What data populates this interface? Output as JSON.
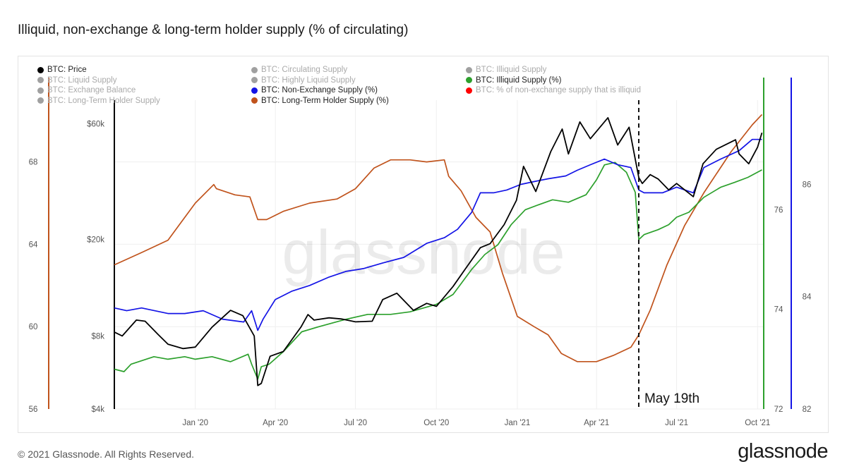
{
  "page": {
    "title": "Illiquid, non-exchange & long-term holder supply (% of circulating)",
    "footer_copyright": "© 2021 Glassnode. All Rights Reserved.",
    "footer_brand": "glassnode",
    "watermark": "glassnode"
  },
  "legend": [
    {
      "label": "BTC: Price",
      "color": "#000000",
      "active": true
    },
    {
      "label": "BTC: Circulating Supply",
      "color": "#a0a0a0",
      "active": false
    },
    {
      "label": "BTC: Illiquid Supply",
      "color": "#a0a0a0",
      "active": false
    },
    {
      "label": "BTC: Liquid Supply",
      "color": "#a0a0a0",
      "active": false
    },
    {
      "label": "BTC: Highly Liquid Supply",
      "color": "#a0a0a0",
      "active": false
    },
    {
      "label": "BTC: Illiquid Supply (%)",
      "color": "#2ca02c",
      "active": true
    },
    {
      "label": "BTC: Exchange Balance",
      "color": "#a0a0a0",
      "active": false
    },
    {
      "label": "BTC: Non-Exchange Supply (%)",
      "color": "#1414e6",
      "active": true
    },
    {
      "label": "BTC: % of non-exchange supply that is illiquid",
      "color": "#ff0000",
      "active": false
    },
    {
      "label": "BTC: Long-Term Holder Supply",
      "color": "#a0a0a0",
      "active": false
    },
    {
      "label": "BTC: Long-Term Holder Supply (%)",
      "color": "#c0531c",
      "active": true
    }
  ],
  "annotation": {
    "label": "May 19th",
    "date": "2021-05-19"
  },
  "chart_data": {
    "type": "line",
    "x_axis": {
      "type": "date",
      "range": [
        "2019-10-01",
        "2021-10-08"
      ],
      "ticks": [
        "Jan '20",
        "Apr '20",
        "Jul '20",
        "Oct '20",
        "Jan '21",
        "Apr '21",
        "Jul '21",
        "Oct '21"
      ],
      "tick_dates": [
        "2020-01-01",
        "2020-04-01",
        "2020-07-01",
        "2020-10-01",
        "2021-01-01",
        "2021-04-01",
        "2021-07-01",
        "2021-10-01"
      ]
    },
    "axes": {
      "price": {
        "scale": "log",
        "range": [
          4000,
          75000
        ],
        "ticks": [
          "$4k",
          "$8k",
          "$20k",
          "$60k"
        ],
        "tick_values": [
          4000,
          8000,
          20000,
          60000
        ],
        "line_color": "#000000"
      },
      "lth_pct": {
        "range": [
          56,
          71
        ],
        "ticks": [
          "56",
          "60",
          "64",
          "68"
        ],
        "tick_values": [
          56,
          60,
          64,
          68
        ],
        "line_color": "#c0531c"
      },
      "illiquid_pct": {
        "range": [
          72,
          78.2
        ],
        "ticks": [
          "72",
          "74",
          "76"
        ],
        "tick_values": [
          72,
          74,
          76
        ],
        "line_color": "#2ca02c"
      },
      "nonex_pct": {
        "range": [
          82,
          87.5
        ],
        "ticks": [
          "82",
          "84",
          "86"
        ],
        "tick_values": [
          82,
          84,
          86
        ],
        "line_color": "#1414e6"
      }
    },
    "grid": true,
    "series": [
      {
        "name": "BTC: Price",
        "axis": "price",
        "color": "#000000",
        "points": [
          [
            "2019-10-01",
            8300
          ],
          [
            "2019-10-10",
            8000
          ],
          [
            "2019-10-26",
            9300
          ],
          [
            "2019-11-05",
            9200
          ],
          [
            "2019-11-20",
            8100
          ],
          [
            "2019-12-01",
            7400
          ],
          [
            "2019-12-18",
            7100
          ],
          [
            "2020-01-01",
            7200
          ],
          [
            "2020-01-20",
            8700
          ],
          [
            "2020-02-10",
            10200
          ],
          [
            "2020-02-24",
            9700
          ],
          [
            "2020-03-08",
            8000
          ],
          [
            "2020-03-12",
            5000
          ],
          [
            "2020-03-16",
            5100
          ],
          [
            "2020-03-26",
            6600
          ],
          [
            "2020-04-10",
            6900
          ],
          [
            "2020-04-30",
            8700
          ],
          [
            "2020-05-08",
            9800
          ],
          [
            "2020-05-15",
            9300
          ],
          [
            "2020-06-01",
            9500
          ],
          [
            "2020-06-15",
            9400
          ],
          [
            "2020-07-01",
            9150
          ],
          [
            "2020-07-20",
            9200
          ],
          [
            "2020-08-01",
            11300
          ],
          [
            "2020-08-17",
            12000
          ],
          [
            "2020-09-05",
            10200
          ],
          [
            "2020-09-20",
            10900
          ],
          [
            "2020-10-01",
            10600
          ],
          [
            "2020-10-20",
            12800
          ],
          [
            "2020-11-05",
            15500
          ],
          [
            "2020-11-20",
            18500
          ],
          [
            "2020-12-01",
            19200
          ],
          [
            "2020-12-17",
            23000
          ],
          [
            "2020-12-31",
            29000
          ],
          [
            "2021-01-08",
            40000
          ],
          [
            "2021-01-22",
            31500
          ],
          [
            "2021-02-08",
            46000
          ],
          [
            "2021-02-21",
            57000
          ],
          [
            "2021-02-28",
            45000
          ],
          [
            "2021-03-13",
            61000
          ],
          [
            "2021-03-25",
            52000
          ],
          [
            "2021-04-14",
            63500
          ],
          [
            "2021-04-25",
            49000
          ],
          [
            "2021-05-08",
            58000
          ],
          [
            "2021-05-19",
            36000
          ],
          [
            "2021-05-23",
            34000
          ],
          [
            "2021-06-01",
            37000
          ],
          [
            "2021-06-10",
            35500
          ],
          [
            "2021-06-22",
            32000
          ],
          [
            "2021-07-01",
            34000
          ],
          [
            "2021-07-20",
            30000
          ],
          [
            "2021-07-31",
            41000
          ],
          [
            "2021-08-15",
            47000
          ],
          [
            "2021-09-06",
            51500
          ],
          [
            "2021-09-10",
            45000
          ],
          [
            "2021-09-21",
            41000
          ],
          [
            "2021-10-01",
            48000
          ],
          [
            "2021-10-06",
            55000
          ]
        ]
      },
      {
        "name": "BTC: Long-Term Holder Supply (%)",
        "axis": "lth_pct",
        "color": "#c0531c",
        "points": [
          [
            "2019-10-01",
            63.0
          ],
          [
            "2019-11-01",
            63.6
          ],
          [
            "2019-12-01",
            64.2
          ],
          [
            "2020-01-01",
            66.0
          ],
          [
            "2020-01-22",
            66.9
          ],
          [
            "2020-01-25",
            66.7
          ],
          [
            "2020-02-15",
            66.4
          ],
          [
            "2020-03-03",
            66.3
          ],
          [
            "2020-03-12",
            65.2
          ],
          [
            "2020-03-22",
            65.2
          ],
          [
            "2020-04-10",
            65.6
          ],
          [
            "2020-05-10",
            66.0
          ],
          [
            "2020-06-10",
            66.2
          ],
          [
            "2020-07-01",
            66.7
          ],
          [
            "2020-07-22",
            67.7
          ],
          [
            "2020-08-10",
            68.1
          ],
          [
            "2020-09-01",
            68.1
          ],
          [
            "2020-09-20",
            68.0
          ],
          [
            "2020-10-10",
            68.1
          ],
          [
            "2020-10-15",
            67.3
          ],
          [
            "2020-10-29",
            66.6
          ],
          [
            "2020-11-15",
            65.3
          ],
          [
            "2020-12-01",
            64.6
          ],
          [
            "2020-12-15",
            62.6
          ],
          [
            "2021-01-01",
            60.5
          ],
          [
            "2021-01-20",
            60.0
          ],
          [
            "2021-02-05",
            59.6
          ],
          [
            "2021-02-20",
            58.7
          ],
          [
            "2021-03-10",
            58.3
          ],
          [
            "2021-04-01",
            58.3
          ],
          [
            "2021-04-20",
            58.6
          ],
          [
            "2021-05-10",
            59.0
          ],
          [
            "2021-05-19",
            59.6
          ],
          [
            "2021-06-01",
            60.8
          ],
          [
            "2021-06-20",
            63.0
          ],
          [
            "2021-07-10",
            64.9
          ],
          [
            "2021-08-01",
            66.5
          ],
          [
            "2021-09-01",
            68.5
          ],
          [
            "2021-09-25",
            69.8
          ],
          [
            "2021-10-06",
            70.3
          ]
        ]
      },
      {
        "name": "BTC: Illiquid Supply (%)",
        "axis": "illiquid_pct",
        "color": "#2ca02c",
        "points": [
          [
            "2019-10-01",
            72.8
          ],
          [
            "2019-10-12",
            72.75
          ],
          [
            "2019-10-20",
            72.9
          ],
          [
            "2019-11-15",
            73.05
          ],
          [
            "2019-12-01",
            73.0
          ],
          [
            "2019-12-20",
            73.05
          ],
          [
            "2020-01-01",
            73.0
          ],
          [
            "2020-01-20",
            73.05
          ],
          [
            "2020-02-10",
            72.95
          ],
          [
            "2020-03-01",
            73.1
          ],
          [
            "2020-03-05",
            72.9
          ],
          [
            "2020-03-12",
            72.6
          ],
          [
            "2020-03-16",
            72.85
          ],
          [
            "2020-03-25",
            72.9
          ],
          [
            "2020-04-10",
            73.15
          ],
          [
            "2020-05-01",
            73.55
          ],
          [
            "2020-05-20",
            73.65
          ],
          [
            "2020-06-20",
            73.8
          ],
          [
            "2020-07-15",
            73.9
          ],
          [
            "2020-08-10",
            73.9
          ],
          [
            "2020-09-01",
            73.95
          ],
          [
            "2020-10-01",
            74.1
          ],
          [
            "2020-10-20",
            74.3
          ],
          [
            "2020-11-10",
            74.8
          ],
          [
            "2020-11-25",
            75.1
          ],
          [
            "2020-12-10",
            75.3
          ],
          [
            "2020-12-25",
            75.7
          ],
          [
            "2021-01-10",
            76.0
          ],
          [
            "2021-01-25",
            76.1
          ],
          [
            "2021-02-10",
            76.2
          ],
          [
            "2021-02-28",
            76.15
          ],
          [
            "2021-03-20",
            76.3
          ],
          [
            "2021-04-01",
            76.6
          ],
          [
            "2021-04-10",
            76.9
          ],
          [
            "2021-04-22",
            76.95
          ],
          [
            "2021-05-05",
            76.75
          ],
          [
            "2021-05-15",
            76.35
          ],
          [
            "2021-05-19",
            75.4
          ],
          [
            "2021-05-25",
            75.5
          ],
          [
            "2021-06-10",
            75.6
          ],
          [
            "2021-06-22",
            75.7
          ],
          [
            "2021-07-01",
            75.85
          ],
          [
            "2021-07-15",
            75.95
          ],
          [
            "2021-08-01",
            76.25
          ],
          [
            "2021-08-20",
            76.45
          ],
          [
            "2021-09-05",
            76.55
          ],
          [
            "2021-09-20",
            76.65
          ],
          [
            "2021-10-06",
            76.8
          ]
        ]
      },
      {
        "name": "BTC: Non-Exchange Supply (%)",
        "axis": "nonex_pct",
        "color": "#1414e6",
        "points": [
          [
            "2019-10-01",
            83.8
          ],
          [
            "2019-10-15",
            83.75
          ],
          [
            "2019-11-01",
            83.8
          ],
          [
            "2019-12-01",
            83.7
          ],
          [
            "2019-12-20",
            83.7
          ],
          [
            "2020-01-10",
            83.75
          ],
          [
            "2020-02-01",
            83.6
          ],
          [
            "2020-02-25",
            83.55
          ],
          [
            "2020-03-05",
            83.75
          ],
          [
            "2020-03-12",
            83.4
          ],
          [
            "2020-03-18",
            83.6
          ],
          [
            "2020-04-01",
            83.95
          ],
          [
            "2020-04-20",
            84.1
          ],
          [
            "2020-05-10",
            84.2
          ],
          [
            "2020-06-01",
            84.35
          ],
          [
            "2020-06-20",
            84.45
          ],
          [
            "2020-07-10",
            84.5
          ],
          [
            "2020-08-01",
            84.6
          ],
          [
            "2020-08-25",
            84.7
          ],
          [
            "2020-09-20",
            84.95
          ],
          [
            "2020-10-10",
            85.05
          ],
          [
            "2020-10-25",
            85.2
          ],
          [
            "2020-11-10",
            85.5
          ],
          [
            "2020-11-20",
            85.85
          ],
          [
            "2020-12-05",
            85.85
          ],
          [
            "2020-12-20",
            85.9
          ],
          [
            "2021-01-05",
            86.0
          ],
          [
            "2021-01-20",
            86.05
          ],
          [
            "2021-02-05",
            86.1
          ],
          [
            "2021-02-25",
            86.15
          ],
          [
            "2021-03-10",
            86.25
          ],
          [
            "2021-03-25",
            86.35
          ],
          [
            "2021-04-10",
            86.45
          ],
          [
            "2021-04-25",
            86.35
          ],
          [
            "2021-05-10",
            86.3
          ],
          [
            "2021-05-19",
            85.9
          ],
          [
            "2021-05-25",
            85.85
          ],
          [
            "2021-06-15",
            85.85
          ],
          [
            "2021-07-01",
            85.95
          ],
          [
            "2021-07-20",
            85.85
          ],
          [
            "2021-08-01",
            86.3
          ],
          [
            "2021-08-20",
            86.45
          ],
          [
            "2021-09-10",
            86.6
          ],
          [
            "2021-09-25",
            86.8
          ],
          [
            "2021-10-06",
            86.8
          ]
        ]
      }
    ]
  }
}
